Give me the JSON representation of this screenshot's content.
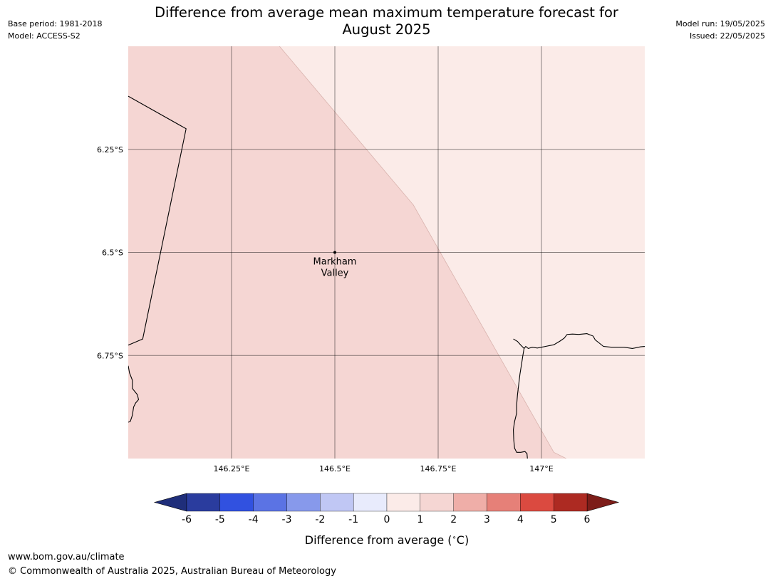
{
  "header": {
    "title_line1": "Difference from average mean maximum temperature forecast for",
    "title_line2": "August 2025",
    "base_period": "Base period: 1981-2018",
    "model": "Model: ACCESS-S2",
    "model_run": "Model run: 19/05/2025",
    "issued": "Issued: 22/05/2025"
  },
  "map": {
    "region": "Markham Valley",
    "lon_range": [
      146.0,
      147.25
    ],
    "lat_range": [
      -6.0,
      -7.0
    ],
    "lon_ticks": [
      {
        "value": 146.25,
        "label": "146.25°E"
      },
      {
        "value": 146.5,
        "label": "146.5°E"
      },
      {
        "value": 146.75,
        "label": "146.75°E"
      },
      {
        "value": 147.0,
        "label": "147°E"
      }
    ],
    "lat_ticks": [
      {
        "value": -6.25,
        "label": "6.25°S"
      },
      {
        "value": -6.5,
        "label": "6.5°S"
      },
      {
        "value": -6.75,
        "label": "6.75°S"
      }
    ],
    "location": {
      "name_line1": "Markham",
      "name_line2": "Valley",
      "lon": 146.5,
      "lat": -6.5
    },
    "zones": [
      {
        "range": "1 to 2",
        "color": "#f5d6d3"
      },
      {
        "range": "0 to 1",
        "color": "#fbebe8"
      }
    ],
    "zone_boundary": [
      {
        "lon": 146.366,
        "lat": -6.0
      },
      {
        "lon": 146.69,
        "lat": -6.385
      },
      {
        "lon": 147.03,
        "lat": -6.985
      },
      {
        "lon": 147.06,
        "lat": -7.0
      }
    ],
    "coastlines": [
      [
        {
          "lon": 146.0,
          "lat": -6.121
        },
        {
          "lon": 146.14,
          "lat": -6.2
        },
        {
          "lon": 146.035,
          "lat": -6.71
        },
        {
          "lon": 146.0,
          "lat": -6.725
        }
      ],
      [
        {
          "lon": 146.0,
          "lat": -6.775
        },
        {
          "lon": 146.003,
          "lat": -6.792
        },
        {
          "lon": 146.01,
          "lat": -6.81
        },
        {
          "lon": 146.01,
          "lat": -6.83
        },
        {
          "lon": 146.022,
          "lat": -6.845
        },
        {
          "lon": 146.025,
          "lat": -6.857
        },
        {
          "lon": 146.018,
          "lat": -6.865
        },
        {
          "lon": 146.013,
          "lat": -6.875
        },
        {
          "lon": 146.01,
          "lat": -6.895
        },
        {
          "lon": 146.005,
          "lat": -6.91
        },
        {
          "lon": 146.0,
          "lat": -6.912
        }
      ],
      [
        {
          "lon": 146.932,
          "lat": -6.71
        },
        {
          "lon": 146.942,
          "lat": -6.716
        },
        {
          "lon": 146.95,
          "lat": -6.725
        },
        {
          "lon": 146.958,
          "lat": -6.733
        },
        {
          "lon": 146.962,
          "lat": -6.728
        },
        {
          "lon": 146.968,
          "lat": -6.733
        },
        {
          "lon": 146.978,
          "lat": -6.73
        },
        {
          "lon": 146.99,
          "lat": -6.732
        },
        {
          "lon": 147.01,
          "lat": -6.728
        },
        {
          "lon": 147.03,
          "lat": -6.724
        },
        {
          "lon": 147.045,
          "lat": -6.715
        },
        {
          "lon": 147.055,
          "lat": -6.708
        },
        {
          "lon": 147.062,
          "lat": -6.699
        },
        {
          "lon": 147.075,
          "lat": -6.698
        },
        {
          "lon": 147.09,
          "lat": -6.699
        },
        {
          "lon": 147.11,
          "lat": -6.697
        },
        {
          "lon": 147.125,
          "lat": -6.703
        },
        {
          "lon": 147.13,
          "lat": -6.712
        },
        {
          "lon": 147.14,
          "lat": -6.72
        },
        {
          "lon": 147.15,
          "lat": -6.728
        },
        {
          "lon": 147.17,
          "lat": -6.73
        },
        {
          "lon": 147.2,
          "lat": -6.73
        },
        {
          "lon": 147.22,
          "lat": -6.733
        },
        {
          "lon": 147.24,
          "lat": -6.729
        },
        {
          "lon": 147.25,
          "lat": -6.728
        }
      ],
      [
        {
          "lon": 146.958,
          "lat": -6.733
        },
        {
          "lon": 146.955,
          "lat": -6.75
        },
        {
          "lon": 146.952,
          "lat": -6.77
        },
        {
          "lon": 146.948,
          "lat": -6.795
        },
        {
          "lon": 146.945,
          "lat": -6.82
        },
        {
          "lon": 146.942,
          "lat": -6.845
        },
        {
          "lon": 146.94,
          "lat": -6.87
        },
        {
          "lon": 146.94,
          "lat": -6.89
        },
        {
          "lon": 146.935,
          "lat": -6.91
        },
        {
          "lon": 146.932,
          "lat": -6.93
        },
        {
          "lon": 146.933,
          "lat": -6.955
        },
        {
          "lon": 146.935,
          "lat": -6.975
        },
        {
          "lon": 146.94,
          "lat": -6.985
        },
        {
          "lon": 146.95,
          "lat": -6.985
        },
        {
          "lon": 146.96,
          "lat": -6.983
        },
        {
          "lon": 146.965,
          "lat": -6.988
        },
        {
          "lon": 146.966,
          "lat": -7.0
        }
      ]
    ]
  },
  "legend": {
    "ticks": [
      "-6",
      "-5",
      "-4",
      "-3",
      "-2",
      "-1",
      "0",
      "1",
      "2",
      "3",
      "4",
      "5",
      "6"
    ],
    "colors": [
      "#2a3c9e",
      "#3151e0",
      "#5b73e4",
      "#8799eb",
      "#c0c7f4",
      "#e8ebfc",
      "#fbebe8",
      "#f5d6d3",
      "#efaea8",
      "#e68078",
      "#db4a40",
      "#ad2a22"
    ],
    "extend_low_color": "#1f2e7a",
    "extend_high_color": "#7d1d19",
    "label": "Difference from average (",
    "label_unit": "∘",
    "label_end": "C)"
  },
  "footer": {
    "url": "www.bom.gov.au/climate",
    "copyright": "© Commonwealth of Australia 2025, Australian Bureau of Meteorology"
  }
}
